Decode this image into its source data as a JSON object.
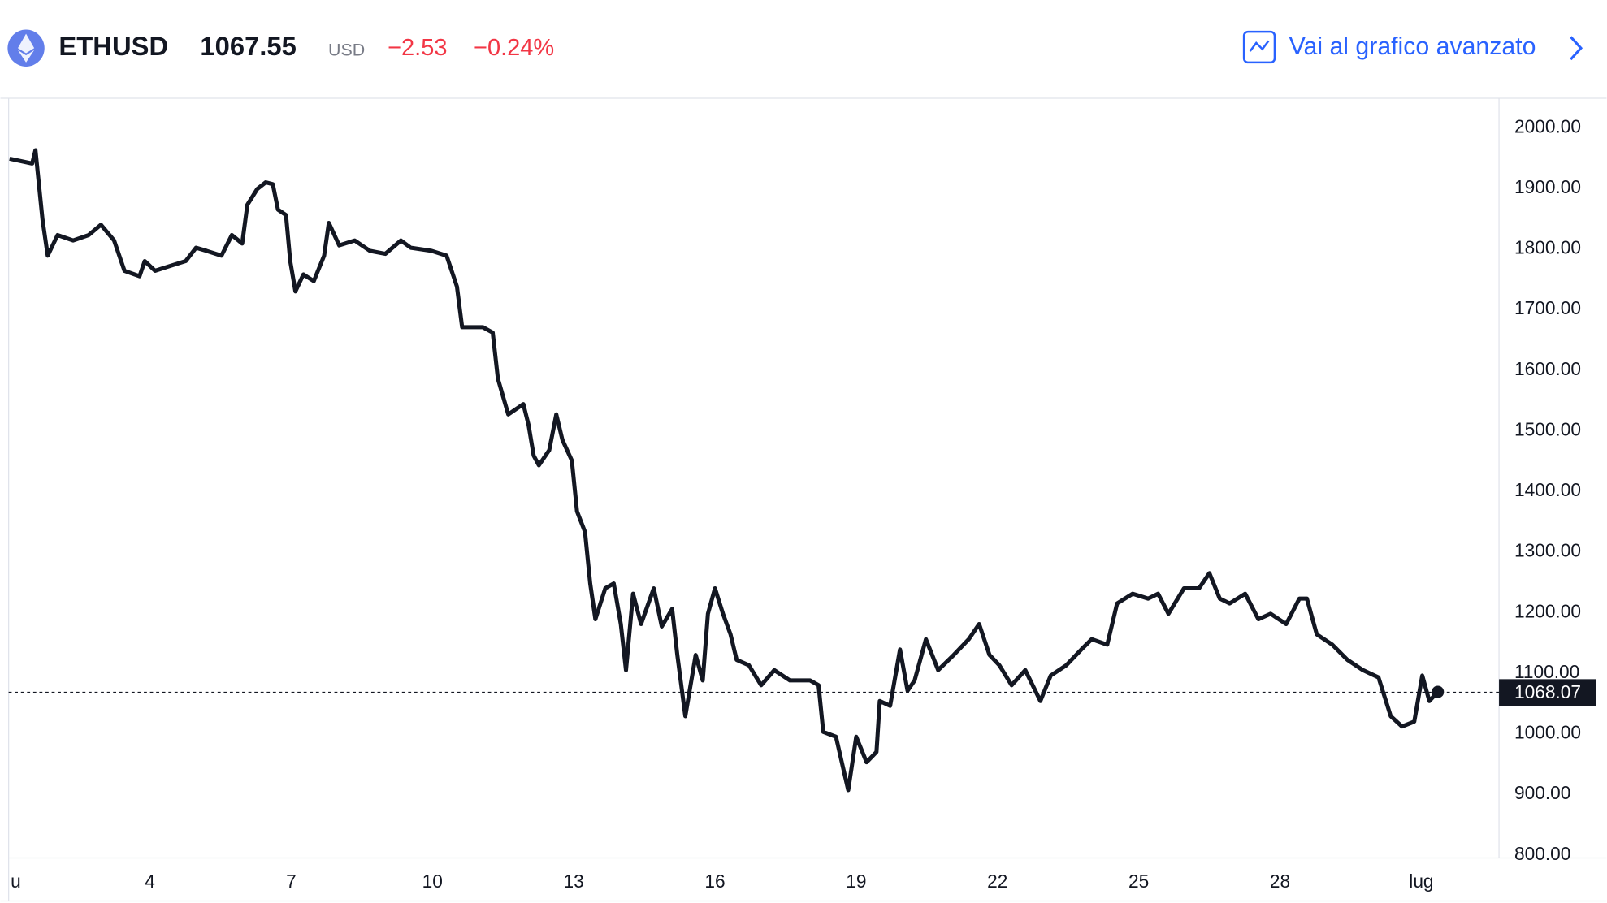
{
  "header": {
    "symbol": "ETHUSD",
    "price": "1067.55",
    "currency": "USD",
    "change": "−2.53",
    "change_percent": "−0.24%",
    "link": "Vai al grafico avanzato"
  },
  "chart_data": {
    "type": "line",
    "x": [
      1.02,
      1.5,
      1.57,
      1.72,
      1.83,
      2.04,
      2.37,
      2.7,
      2.96,
      3.24,
      3.46,
      3.78,
      3.89,
      4.11,
      4.43,
      4.76,
      4.98,
      5.2,
      5.52,
      5.74,
      5.96,
      6.07,
      6.28,
      6.46,
      6.61,
      6.72,
      6.89,
      6.98,
      7.09,
      7.26,
      7.48,
      7.7,
      7.8,
      8.02,
      8.35,
      8.67,
      9,
      9.33,
      9.54,
      9.98,
      10.3,
      10.52,
      10.63,
      11.07,
      11.28,
      11.39,
      11.61,
      11.93,
      12.04,
      12.15,
      12.26,
      12.48,
      12.63,
      12.76,
      12.96,
      13.07,
      13.24,
      13.35,
      13.46,
      13.67,
      13.85,
      14,
      14.11,
      14.26,
      14.43,
      14.7,
      14.87,
      15.09,
      15.2,
      15.37,
      15.59,
      15.74,
      15.85,
      16,
      16.17,
      16.33,
      16.46,
      16.72,
      16.98,
      17.26,
      17.59,
      18.02,
      18.2,
      18.3,
      18.57,
      18.72,
      18.83,
      19,
      19.22,
      19.43,
      19.5,
      19.72,
      19.93,
      20.09,
      20.24,
      20.48,
      20.74,
      21.07,
      21.39,
      21.61,
      21.83,
      22.04,
      22.3,
      22.59,
      22.91,
      23.13,
      23.46,
      23.78,
      24,
      24.33,
      24.54,
      24.87,
      25.2,
      25.41,
      25.63,
      25.96,
      26.28,
      26.5,
      26.72,
      26.93,
      27.26,
      27.54,
      27.8,
      28.13,
      28.41,
      28.57,
      28.78,
      29.11,
      29.43,
      29.76,
      30.09,
      30.35,
      30.59,
      30.85,
      31.02,
      31.17,
      31.35
    ],
    "series": [
      {
        "name": "ETHUSD",
        "color": "#131722",
        "values": [
          1949,
          1941,
          1963,
          1848,
          1789,
          1823,
          1814,
          1823,
          1840,
          1814,
          1764,
          1755,
          1780,
          1764,
          1772,
          1780,
          1802,
          1797,
          1789,
          1823,
          1809,
          1873,
          1899,
          1910,
          1907,
          1865,
          1856,
          1780,
          1730,
          1758,
          1747,
          1789,
          1843,
          1806,
          1814,
          1797,
          1792,
          1814,
          1802,
          1797,
          1789,
          1738,
          1671,
          1671,
          1662,
          1586,
          1527,
          1544,
          1510,
          1459,
          1443,
          1468,
          1527,
          1485,
          1451,
          1367,
          1333,
          1248,
          1189,
          1240,
          1248,
          1181,
          1105,
          1231,
          1181,
          1240,
          1177,
          1206,
          1130,
          1029,
          1130,
          1088,
          1198,
          1240,
          1198,
          1164,
          1122,
          1113,
          1080,
          1105,
          1088,
          1088,
          1080,
          1003,
          995,
          944,
          907,
          995,
          953,
          970,
          1054,
          1046,
          1139,
          1071,
          1088,
          1156,
          1105,
          1130,
          1156,
          1181,
          1130,
          1113,
          1080,
          1105,
          1054,
          1096,
          1113,
          1139,
          1156,
          1147,
          1215,
          1231,
          1223,
          1231,
          1198,
          1240,
          1240,
          1265,
          1223,
          1215,
          1231,
          1189,
          1198,
          1181,
          1223,
          1223,
          1164,
          1147,
          1122,
          1105,
          1093,
          1029,
          1012,
          1020,
          1096,
          1054,
          1069
        ]
      }
    ],
    "current_price": 1068.07,
    "xlim": [
      1,
      32.65
    ],
    "xticks": [
      {
        "value": 1,
        "label": "u"
      },
      4,
      7,
      10,
      13,
      16,
      19,
      22,
      25,
      28,
      {
        "value": 31,
        "label": "lug"
      }
    ],
    "ylim": [
      795,
      2047
    ],
    "yticks": [
      {
        "value": 800,
        "label": "800.00"
      },
      {
        "value": 900,
        "label": "900.00"
      },
      {
        "value": 1000,
        "label": "1000.00"
      },
      {
        "value": 1100,
        "label": "1100.00"
      },
      {
        "value": 1200,
        "label": "1200.00"
      },
      {
        "value": 1300,
        "label": "1300.00"
      },
      {
        "value": 1400,
        "label": "1400.00"
      },
      {
        "value": 1500,
        "label": "1500.00"
      },
      {
        "value": 1600,
        "label": "1600.00"
      },
      {
        "value": 1700,
        "label": "1700.00"
      },
      {
        "value": 1800,
        "label": "1800.00"
      },
      {
        "value": 1900,
        "label": "1900.00"
      },
      {
        "value": 2000,
        "label": "2000.00"
      }
    ]
  }
}
